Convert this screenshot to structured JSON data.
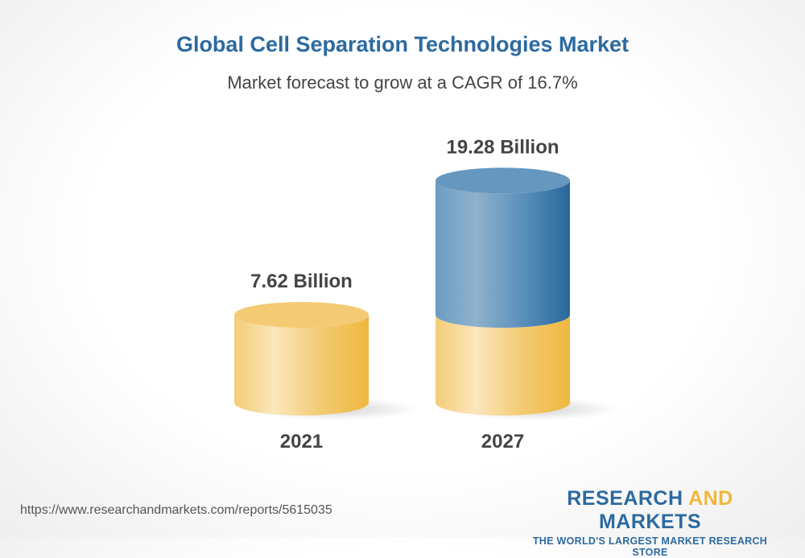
{
  "chart_data": {
    "type": "bar",
    "title": "Global Cell Separation Technologies Market",
    "subtitle": "Market forecast to grow at a CAGR of 16.7%",
    "categories": [
      "2021",
      "2027"
    ],
    "values": [
      7.62,
      19.28
    ],
    "data_labels": [
      "7.62 Billion",
      "19.28 Billion"
    ],
    "unit": "Billion",
    "colors": {
      "base": "#f2c25a",
      "growth": "#3a78ad"
    }
  },
  "footer": {
    "url": "https://www.researchandmarkets.com/reports/5615035"
  },
  "logo": {
    "part1": "RESEARCH",
    "part2": "AND",
    "part3": "MARKETS",
    "tagline": "THE WORLD'S LARGEST MARKET RESEARCH STORE"
  }
}
